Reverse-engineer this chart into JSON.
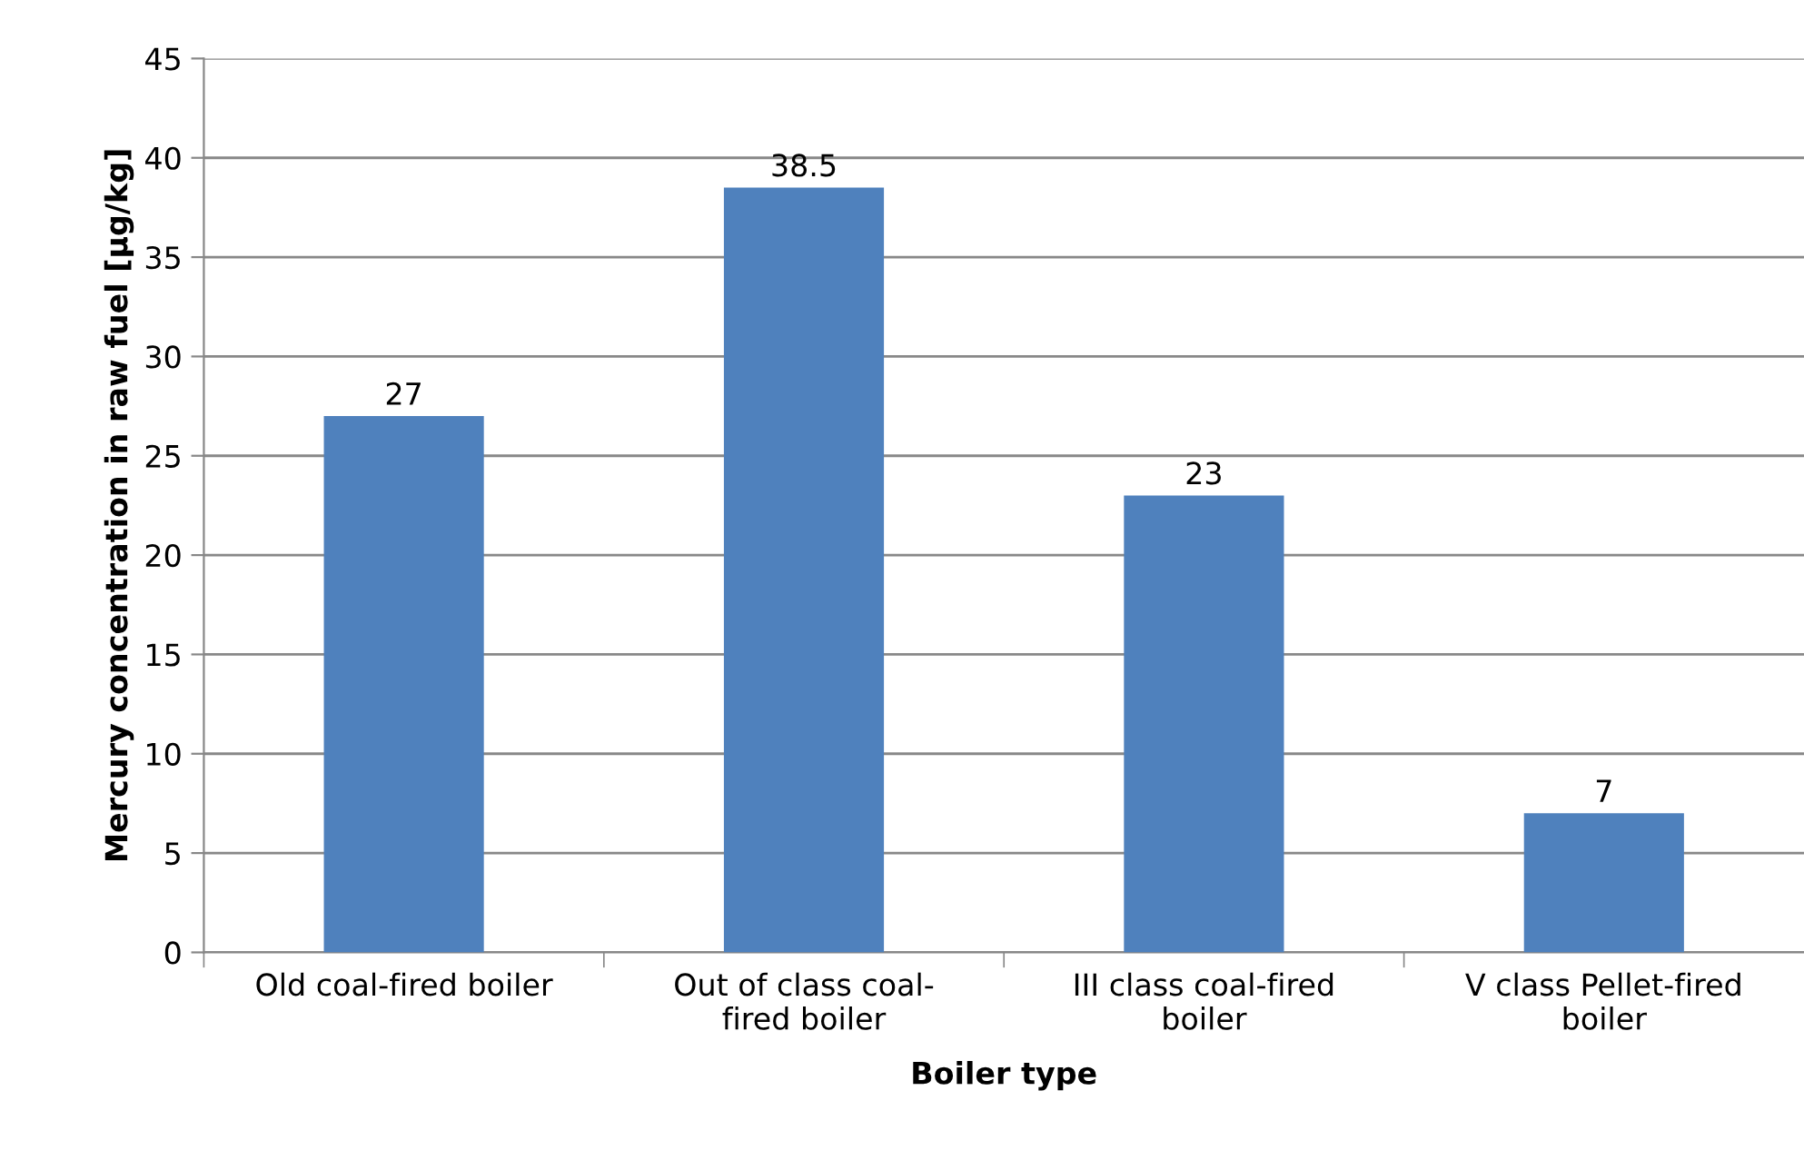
{
  "chart_data": {
    "type": "bar",
    "xlabel": "Boiler type",
    "ylabel": "Mercury concentration in raw fuel [µg/kg]",
    "categories": [
      "Old coal-fired boiler",
      "Out of class coal-\nfired boiler",
      "III class coal-fired\nboiler",
      "V class Pellet-fired\nboiler"
    ],
    "values": [
      27,
      38.5,
      23,
      7
    ],
    "color": "#4f81bd",
    "ylim": [
      0,
      45
    ],
    "yticks": [
      0,
      5,
      10,
      15,
      20,
      25,
      30,
      35,
      40,
      45
    ],
    "grid": "y",
    "data_labels": true
  }
}
